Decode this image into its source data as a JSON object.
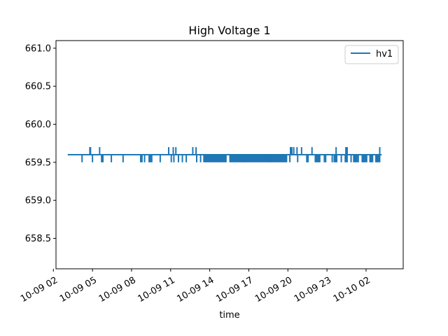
{
  "chart_data": {
    "type": "line",
    "title": "High Voltage 1",
    "xlabel": "time",
    "ylabel": "",
    "x_unit": "hours since 10-09 00:00",
    "xlim": [
      2.2,
      28.85
    ],
    "ylim": [
      658.1,
      661.1
    ],
    "y_ticks": [
      658.5,
      659.0,
      659.5,
      660.0,
      660.5,
      661.0
    ],
    "x_ticks": [
      {
        "value": 2,
        "label": "10-09 02"
      },
      {
        "value": 5,
        "label": "10-09 05"
      },
      {
        "value": 8,
        "label": "10-09 08"
      },
      {
        "value": 11,
        "label": "10-09 11"
      },
      {
        "value": 14,
        "label": "10-09 14"
      },
      {
        "value": 17,
        "label": "10-09 17"
      },
      {
        "value": 20,
        "label": "10-09 20"
      },
      {
        "value": 23,
        "label": "10-09 23"
      },
      {
        "value": 26,
        "label": "10-10 02"
      }
    ],
    "grid": false,
    "legend_position": "upper-right",
    "series": [
      {
        "name": "hv1",
        "color": "#1f77b4",
        "baseline": 659.6,
        "x_range": [
          3.1,
          27.2
        ],
        "spikes_up": [
          4.8,
          4.85,
          5.55,
          10.85,
          11.2,
          11.4,
          12.7,
          12.95,
          20.2,
          20.3,
          20.45,
          20.7,
          21.05,
          21.85,
          23.7,
          24.45,
          24.55,
          27.05
        ],
        "spikes_down": [
          4.2,
          5.0,
          5.7,
          5.8,
          6.45,
          7.35,
          8.7,
          8.8,
          9.0,
          9.35,
          9.45,
          9.55,
          10.2,
          11.05,
          11.25,
          11.6,
          11.9,
          12.2,
          13.0,
          13.3,
          16.55,
          18.65,
          20.15,
          20.75,
          21.45,
          21.55,
          22.8,
          22.9,
          23.4,
          24.1,
          24.85,
          25.4,
          25.75,
          26.3,
          26.4,
          26.5
        ],
        "dense_down_bands": [
          [
            13.5,
            15.3
          ],
          [
            15.5,
            19.95
          ],
          [
            22.05,
            22.5
          ],
          [
            23.5,
            23.8
          ],
          [
            24.35,
            24.6
          ],
          [
            25.0,
            25.35
          ],
          [
            25.65,
            26.1
          ],
          [
            26.7,
            27.1
          ]
        ],
        "down_value": 659.5,
        "up_value": 659.7
      }
    ]
  }
}
